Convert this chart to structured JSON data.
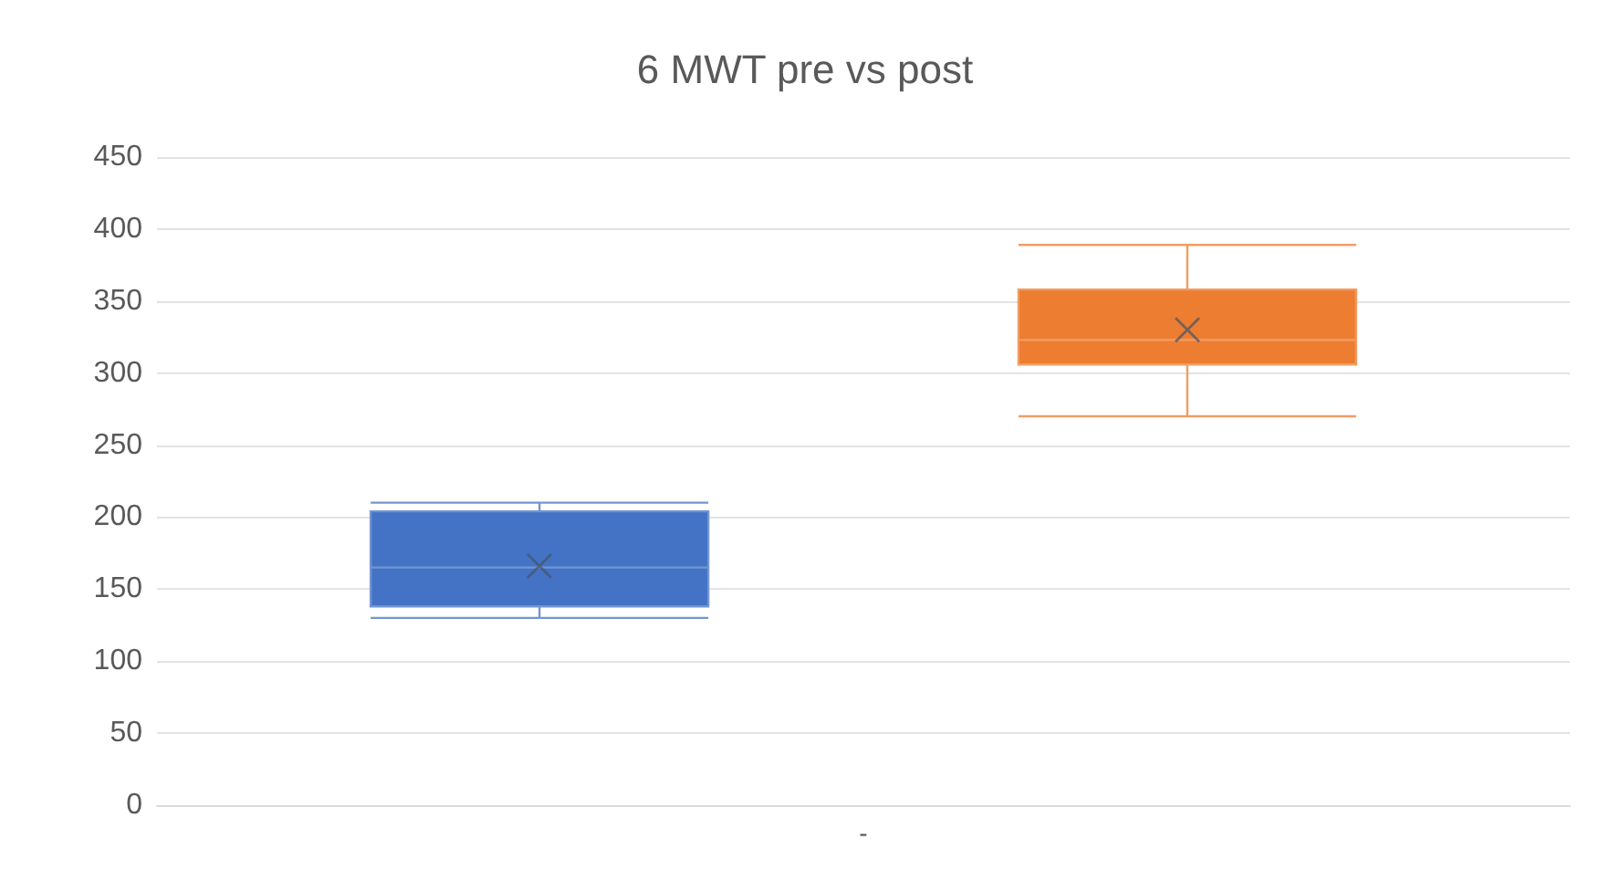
{
  "chart_data": {
    "type": "box",
    "title": "6 MWT pre vs post",
    "categories": [
      "-"
    ],
    "series": [
      {
        "color": "#4472c4",
        "boxes": [
          {
            "low": 130,
            "q1": 138,
            "median": 165,
            "q3": 204,
            "high": 210,
            "mean": 166
          }
        ]
      },
      {
        "color": "#ed7d31",
        "boxes": [
          {
            "low": 270,
            "q1": 306,
            "median": 323,
            "q3": 358,
            "high": 389,
            "mean": 330
          }
        ]
      }
    ],
    "ylim": [
      0,
      450
    ],
    "yticks": [
      0,
      50,
      100,
      150,
      200,
      250,
      300,
      350,
      400,
      450
    ],
    "grid": "y",
    "marker": "cross"
  }
}
